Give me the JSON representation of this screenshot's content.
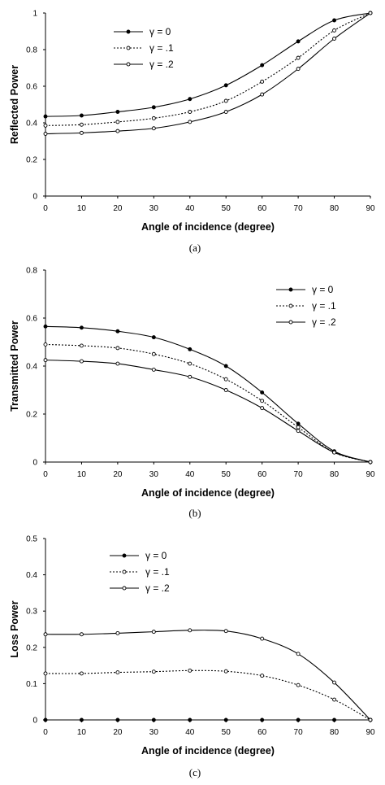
{
  "chart_data": [
    {
      "type": "line",
      "caption": "(a)",
      "xlabel": "Angle of incidence (degree)",
      "ylabel": "Reflected Power",
      "x": [
        0,
        10,
        20,
        30,
        40,
        50,
        60,
        70,
        80,
        90
      ],
      "xlim": [
        0,
        90
      ],
      "ylim": [
        0,
        1
      ],
      "xticks": [
        "0",
        "10",
        "20",
        "30",
        "40",
        "50",
        "60",
        "70",
        "80",
        "90"
      ],
      "yticks": [
        "0",
        "0.2",
        "0.4",
        "0.6",
        "0.8",
        "1"
      ],
      "legend_position": "top-left",
      "grid": false,
      "series": [
        {
          "name": "γ = 0",
          "style": "solid",
          "marker": "filled",
          "values": [
            0.435,
            0.44,
            0.46,
            0.485,
            0.53,
            0.605,
            0.715,
            0.845,
            0.96,
            1.0
          ]
        },
        {
          "name": "γ = .1",
          "style": "dotted",
          "marker": "open",
          "values": [
            0.385,
            0.39,
            0.405,
            0.425,
            0.46,
            0.52,
            0.625,
            0.755,
            0.905,
            1.0
          ]
        },
        {
          "name": "γ = .2",
          "style": "solid",
          "marker": "open",
          "values": [
            0.34,
            0.345,
            0.355,
            0.37,
            0.405,
            0.46,
            0.555,
            0.695,
            0.86,
            1.0
          ]
        }
      ]
    },
    {
      "type": "line",
      "caption": "(b)",
      "xlabel": "Angle of incidence (degree)",
      "ylabel": "Transmitted Power",
      "x": [
        0,
        10,
        20,
        30,
        40,
        50,
        60,
        70,
        80,
        90
      ],
      "xlim": [
        0,
        90
      ],
      "ylim": [
        0,
        0.8
      ],
      "xticks": [
        "0",
        "10",
        "20",
        "30",
        "40",
        "50",
        "60",
        "70",
        "80",
        "90"
      ],
      "yticks": [
        "0",
        "0.2",
        "0.4",
        "0.6",
        "0.8"
      ],
      "legend_position": "top-right",
      "grid": false,
      "series": [
        {
          "name": "γ = 0",
          "style": "solid",
          "marker": "filled",
          "values": [
            0.565,
            0.56,
            0.545,
            0.52,
            0.47,
            0.4,
            0.29,
            0.16,
            0.045,
            0.0
          ]
        },
        {
          "name": "γ = .1",
          "style": "dotted",
          "marker": "open",
          "values": [
            0.49,
            0.485,
            0.475,
            0.45,
            0.41,
            0.345,
            0.255,
            0.145,
            0.04,
            0.0
          ]
        },
        {
          "name": "γ = .2",
          "style": "solid",
          "marker": "open",
          "values": [
            0.425,
            0.42,
            0.41,
            0.385,
            0.355,
            0.3,
            0.225,
            0.13,
            0.04,
            0.0
          ]
        }
      ]
    },
    {
      "type": "line",
      "caption": "(c)",
      "xlabel": "Angle of incidence (degree)",
      "ylabel": "Loss Power",
      "x": [
        0,
        10,
        20,
        30,
        40,
        50,
        60,
        70,
        80,
        90
      ],
      "xlim": [
        0,
        90
      ],
      "ylim": [
        0,
        0.5
      ],
      "xticks": [
        "0",
        "10",
        "20",
        "30",
        "40",
        "50",
        "60",
        "70",
        "80",
        "90"
      ],
      "yticks": [
        "0",
        "0.1",
        "0.2",
        "0.3",
        "0.4",
        "0.5"
      ],
      "legend_position": "top-left",
      "grid": false,
      "series": [
        {
          "name": "γ = 0",
          "style": "solid",
          "marker": "filled",
          "values": [
            0,
            0,
            0,
            0,
            0,
            0,
            0,
            0,
            0,
            0
          ]
        },
        {
          "name": "γ = .1",
          "style": "dotted",
          "marker": "open",
          "values": [
            0.128,
            0.128,
            0.131,
            0.133,
            0.136,
            0.134,
            0.122,
            0.096,
            0.056,
            0.0
          ]
        },
        {
          "name": "γ = .2",
          "style": "solid",
          "marker": "open",
          "values": [
            0.236,
            0.236,
            0.239,
            0.243,
            0.247,
            0.245,
            0.224,
            0.182,
            0.103,
            0.0
          ]
        }
      ]
    }
  ]
}
